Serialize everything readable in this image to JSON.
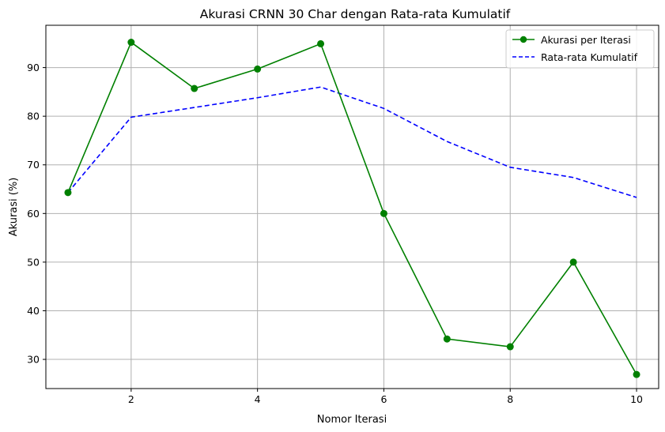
{
  "chart_data": {
    "type": "line",
    "title": "Akurasi CRNN 30 Char dengan Rata-rata Kumulatif",
    "xlabel": "Nomor Iterasi",
    "ylabel": "Akurasi (%)",
    "x": [
      1,
      2,
      3,
      4,
      5,
      6,
      7,
      8,
      9,
      10
    ],
    "xlim": [
      0.65,
      10.35
    ],
    "ylim": [
      24.0,
      98.7
    ],
    "xticks": [
      2,
      4,
      6,
      8,
      10
    ],
    "yticks": [
      30,
      40,
      50,
      60,
      70,
      80,
      90
    ],
    "grid": true,
    "legend_position": "top-right",
    "series": [
      {
        "name": "Akurasi per Iterasi",
        "color": "#008000",
        "style": "solid",
        "marker": "circle",
        "values": [
          64.3,
          95.2,
          85.7,
          89.7,
          94.9,
          60.0,
          34.2,
          32.6,
          50.0,
          26.9
        ]
      },
      {
        "name": "Rata-rata Kumulatif",
        "color": "#0000ff",
        "style": "dashed",
        "marker": "none",
        "values": [
          64.3,
          79.8,
          81.8,
          83.8,
          86.0,
          81.6,
          74.8,
          69.5,
          67.4,
          63.3
        ]
      }
    ]
  }
}
